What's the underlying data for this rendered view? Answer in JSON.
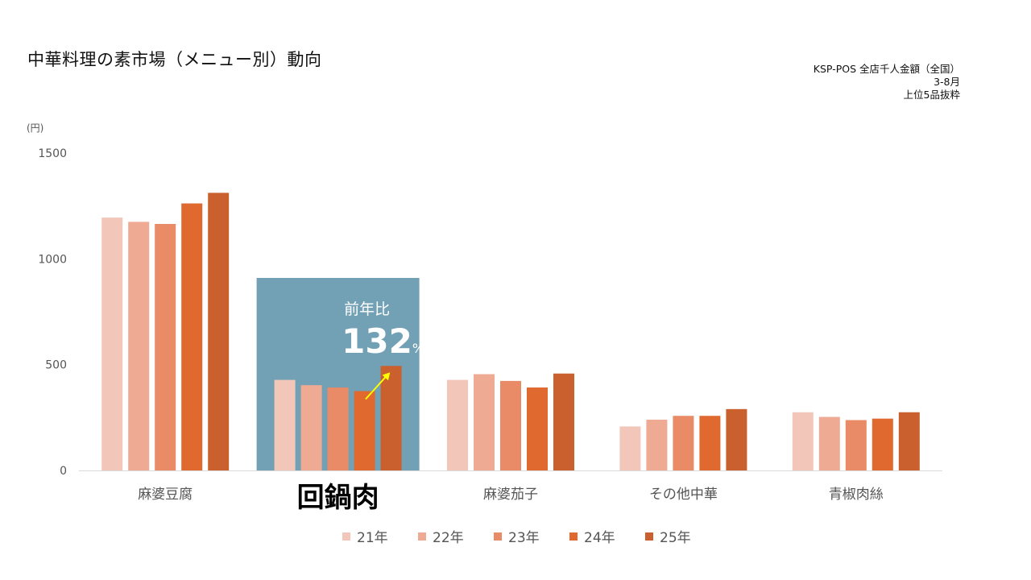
{
  "title": "中華料理の素市場（メニュー別）動向",
  "source_lines": [
    "KSP-POS 全店千人金額（全国）",
    "3-8月",
    "上位5品抜粋"
  ],
  "highlight": {
    "category": "回鍋肉",
    "label": "前年比",
    "value": "132",
    "unit": "%",
    "color": "#72A0B4",
    "arrow_color": "#FFFF00"
  },
  "chart_data": {
    "type": "bar",
    "unit_label": "(円)",
    "ylim": [
      0,
      1500
    ],
    "yticks": [
      0,
      500,
      1000,
      1500
    ],
    "grid": false,
    "legend_position": "bottom",
    "categories": [
      "麻婆豆腐",
      "回鍋肉",
      "麻婆茄子",
      "その他中華",
      "青椒肉絲"
    ],
    "series": [
      {
        "name": "21年",
        "color": "#F2C7BA",
        "values": [
          1195,
          428,
          428,
          208,
          275
        ]
      },
      {
        "name": "22年",
        "color": "#EFAA93",
        "values": [
          1175,
          403,
          455,
          240,
          253
        ]
      },
      {
        "name": "23年",
        "color": "#E98B67",
        "values": [
          1165,
          392,
          423,
          258,
          238
        ]
      },
      {
        "name": "24年",
        "color": "#E0692F",
        "values": [
          1262,
          375,
          392,
          258,
          245
        ]
      },
      {
        "name": "25年",
        "color": "#C9602D",
        "values": [
          1312,
          494,
          458,
          290,
          275
        ]
      }
    ]
  }
}
